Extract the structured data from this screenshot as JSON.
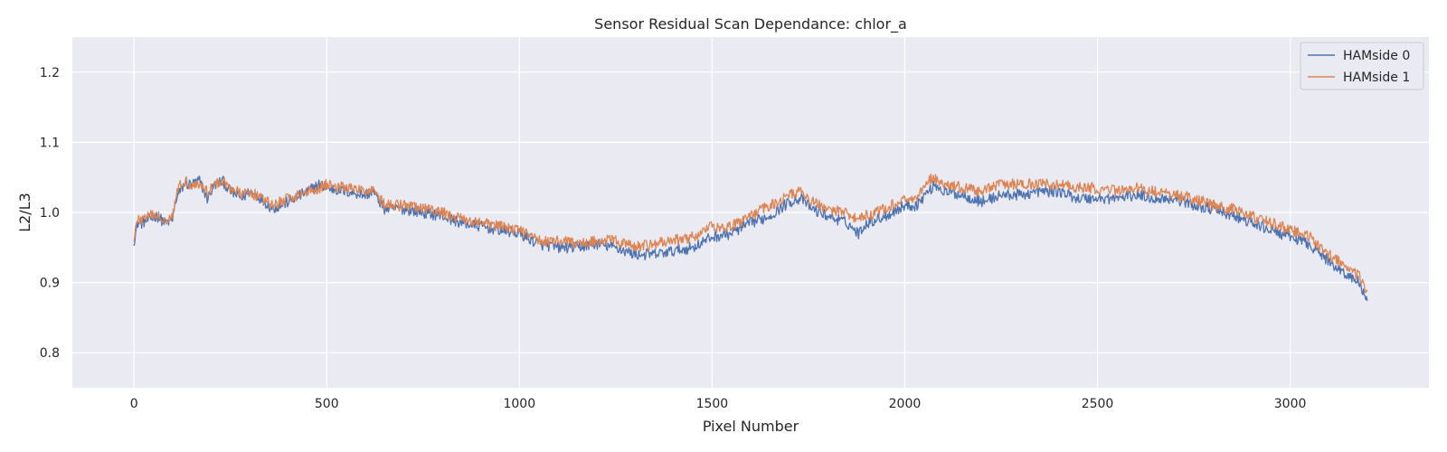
{
  "chart_data": {
    "type": "line",
    "title": "Sensor Residual Scan Dependance: chlor_a",
    "xlabel": "Pixel Number",
    "ylabel": "L2/L3",
    "xlim": [
      -160,
      3360
    ],
    "ylim": [
      0.75,
      1.25
    ],
    "xticks": [
      0,
      500,
      1000,
      1500,
      2000,
      2500,
      3000
    ],
    "yticks": [
      0.8,
      0.9,
      1.0,
      1.1,
      1.2
    ],
    "grid": true,
    "legend_position": "top-right",
    "series": [
      {
        "name": "HAMside 0",
        "color": "#4c72b0",
        "x": [
          0,
          10,
          20,
          40,
          60,
          80,
          100,
          110,
          130,
          150,
          170,
          190,
          210,
          230,
          250,
          280,
          300,
          330,
          360,
          400,
          450,
          480,
          500,
          550,
          600,
          620,
          650,
          700,
          750,
          800,
          850,
          900,
          950,
          1000,
          1050,
          1100,
          1150,
          1200,
          1250,
          1300,
          1350,
          1400,
          1450,
          1500,
          1550,
          1600,
          1650,
          1700,
          1730,
          1760,
          1800,
          1850,
          1880,
          1900,
          1950,
          2000,
          2030,
          2060,
          2080,
          2100,
          2150,
          2200,
          2250,
          2300,
          2350,
          2400,
          2450,
          2500,
          2550,
          2600,
          2650,
          2700,
          2750,
          2800,
          2850,
          2900,
          2950,
          3000,
          3050,
          3100,
          3150,
          3180,
          3200
        ],
        "y": [
          0.96,
          0.985,
          0.985,
          0.99,
          0.995,
          0.985,
          0.99,
          1.02,
          1.04,
          1.04,
          1.045,
          1.02,
          1.04,
          1.045,
          1.03,
          1.02,
          1.03,
          1.02,
          1.005,
          1.015,
          1.03,
          1.04,
          1.035,
          1.03,
          1.025,
          1.03,
          1.005,
          1.005,
          1.0,
          0.995,
          0.985,
          0.98,
          0.975,
          0.97,
          0.955,
          0.95,
          0.95,
          0.955,
          0.95,
          0.94,
          0.94,
          0.945,
          0.95,
          0.965,
          0.97,
          0.985,
          0.995,
          1.015,
          1.02,
          1.005,
          0.995,
          0.985,
          0.97,
          0.985,
          0.995,
          1.01,
          1.01,
          1.03,
          1.04,
          1.03,
          1.025,
          1.015,
          1.025,
          1.025,
          1.03,
          1.03,
          1.02,
          1.02,
          1.02,
          1.025,
          1.02,
          1.02,
          1.01,
          1.005,
          0.995,
          0.985,
          0.975,
          0.965,
          0.955,
          0.93,
          0.91,
          0.9,
          0.87
        ]
      },
      {
        "name": "HAMside 1",
        "color": "#dd8452",
        "x": [
          0,
          10,
          20,
          40,
          60,
          80,
          100,
          110,
          130,
          150,
          170,
          190,
          210,
          230,
          250,
          280,
          300,
          330,
          360,
          400,
          450,
          480,
          500,
          550,
          600,
          620,
          650,
          700,
          750,
          800,
          850,
          900,
          950,
          1000,
          1050,
          1100,
          1150,
          1200,
          1250,
          1300,
          1350,
          1400,
          1450,
          1500,
          1550,
          1600,
          1650,
          1700,
          1730,
          1760,
          1800,
          1850,
          1880,
          1900,
          1950,
          2000,
          2030,
          2060,
          2080,
          2100,
          2150,
          2200,
          2250,
          2300,
          2350,
          2400,
          2450,
          2500,
          2550,
          2600,
          2650,
          2700,
          2750,
          2800,
          2850,
          2900,
          2950,
          3000,
          3050,
          3100,
          3150,
          3180,
          3200
        ],
        "y": [
          0.965,
          0.99,
          0.99,
          0.995,
          0.995,
          0.99,
          0.995,
          1.03,
          1.045,
          1.04,
          1.04,
          1.03,
          1.04,
          1.045,
          1.035,
          1.025,
          1.03,
          1.02,
          1.01,
          1.02,
          1.03,
          1.035,
          1.04,
          1.035,
          1.03,
          1.035,
          1.01,
          1.01,
          1.005,
          1.0,
          0.99,
          0.985,
          0.98,
          0.975,
          0.96,
          0.96,
          0.955,
          0.96,
          0.96,
          0.95,
          0.955,
          0.96,
          0.965,
          0.98,
          0.98,
          0.995,
          1.01,
          1.025,
          1.03,
          1.015,
          1.005,
          1.0,
          0.99,
          0.995,
          1.005,
          1.02,
          1.02,
          1.045,
          1.05,
          1.04,
          1.035,
          1.03,
          1.04,
          1.04,
          1.04,
          1.04,
          1.035,
          1.035,
          1.03,
          1.035,
          1.03,
          1.025,
          1.02,
          1.01,
          1.005,
          0.995,
          0.985,
          0.975,
          0.965,
          0.94,
          0.92,
          0.91,
          0.88
        ]
      }
    ]
  }
}
